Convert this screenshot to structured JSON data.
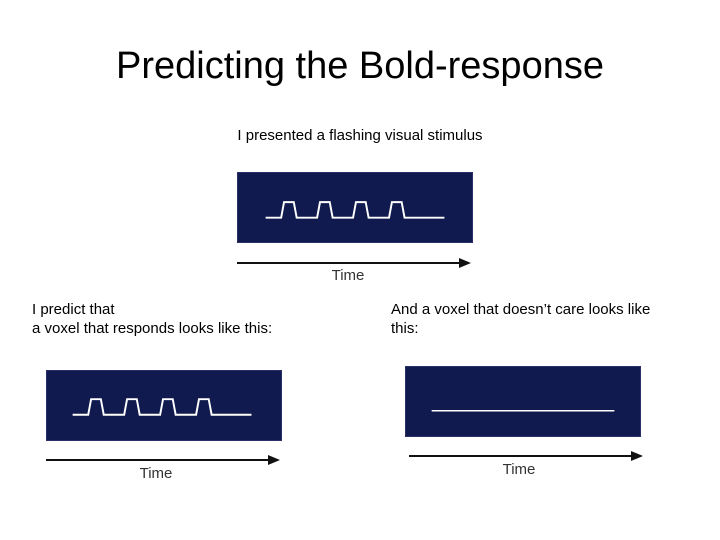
{
  "slide": {
    "title": "Predicting the Bold-response",
    "stimulus_caption": "I presented a flashing visual stimulus",
    "responding_caption": "I predict that\n a voxel that responds looks like this:",
    "nonresponding_caption": "And a voxel that doesn’t care looks like\nthis:"
  },
  "panels": {
    "stimulus": {
      "signal": "square-wave",
      "pulses": 4,
      "axis_label": "Time"
    },
    "responding_voxel": {
      "signal": "square-wave",
      "pulses": 4,
      "axis_label": "Time"
    },
    "nonresponding_voxel": {
      "signal": "flat",
      "axis_label": "Time"
    }
  },
  "colors": {
    "panel_background": "#111a4e",
    "signal_line": "#ffffff",
    "axis": "#111111"
  }
}
